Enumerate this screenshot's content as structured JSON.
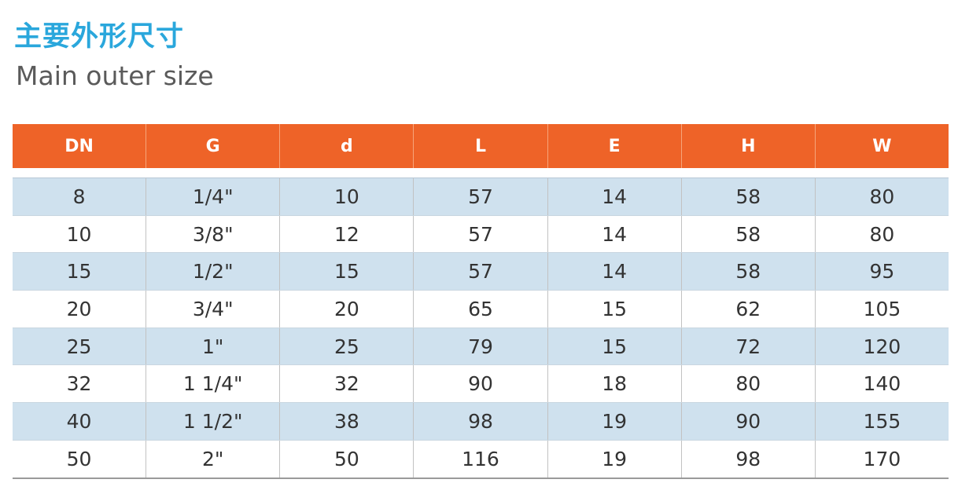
{
  "title_cn": "主要外形尺寸",
  "title_en": "Main outer size",
  "colors": {
    "title_accent": "#2aa7dc",
    "header_bg": "#ee6328",
    "row_stripe": "#cfe1ee"
  },
  "table": {
    "headers": [
      "DN",
      "G",
      "d",
      "L",
      "E",
      "H",
      "W"
    ],
    "rows": [
      [
        "8",
        "1/4\"",
        "10",
        "57",
        "14",
        "58",
        "80"
      ],
      [
        "10",
        "3/8\"",
        "12",
        "57",
        "14",
        "58",
        "80"
      ],
      [
        "15",
        "1/2\"",
        "15",
        "57",
        "14",
        "58",
        "95"
      ],
      [
        "20",
        "3/4\"",
        "20",
        "65",
        "15",
        "62",
        "105"
      ],
      [
        "25",
        "1\"",
        "25",
        "79",
        "15",
        "72",
        "120"
      ],
      [
        "32",
        "1 1/4\"",
        "32",
        "90",
        "18",
        "80",
        "140"
      ],
      [
        "40",
        "1 1/2\"",
        "38",
        "98",
        "19",
        "90",
        "155"
      ],
      [
        "50",
        "2\"",
        "50",
        "116",
        "19",
        "98",
        "170"
      ]
    ]
  }
}
